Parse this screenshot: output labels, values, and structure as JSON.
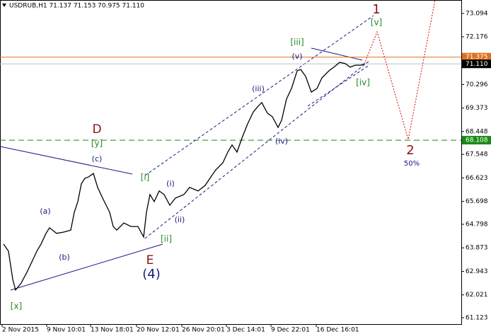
{
  "chart_data": {
    "type": "line",
    "title": "USDRUB,H1  71.137 71.153 70.975 71.110",
    "x": [
      5,
      12,
      18,
      22,
      30,
      38,
      45,
      52,
      58,
      65,
      70,
      80,
      90,
      100,
      105,
      110,
      115,
      120,
      125,
      132,
      138,
      145,
      150,
      155,
      160,
      165,
      175,
      185,
      195,
      203,
      207,
      212,
      218,
      225,
      232,
      240,
      248,
      260,
      268,
      280,
      290,
      298,
      305,
      315,
      322,
      328,
      335,
      342,
      350,
      358,
      365,
      370,
      378,
      385,
      393,
      398,
      405,
      412,
      420,
      425,
      432,
      440,
      448,
      455,
      465,
      472,
      480,
      488,
      495,
      502,
      510,
      515
    ],
    "series": [
      {
        "color": "#000000",
        "values": [
          64.02,
          63.74,
          62.63,
          62.21,
          62.49,
          62.91,
          63.32,
          63.74,
          64.02,
          64.44,
          64.66,
          64.44,
          64.49,
          64.57,
          65.27,
          65.69,
          66.39,
          66.61,
          66.66,
          66.8,
          66.25,
          65.83,
          65.55,
          65.27,
          64.71,
          64.57,
          64.85,
          64.71,
          64.71,
          64.3,
          65.27,
          65.97,
          65.69,
          66.11,
          65.97,
          65.55,
          65.83,
          65.97,
          66.25,
          66.11,
          66.33,
          66.66,
          66.94,
          67.22,
          67.64,
          67.92,
          67.64,
          68.19,
          68.75,
          69.22,
          69.45,
          69.59,
          69.17,
          69.03,
          68.61,
          68.89,
          69.73,
          70.14,
          70.84,
          70.89,
          70.62,
          70.0,
          70.14,
          70.56,
          70.84,
          70.98,
          71.17,
          71.12,
          70.98,
          71.06,
          71.06,
          71.11
        ]
      }
    ],
    "forecast": {
      "color": "#e00000",
      "x": [
        515,
        533,
        577,
        615
      ],
      "values": [
        71.11,
        72.37,
        68.14,
        73.62
      ]
    },
    "xlim": [
      0,
      652
    ],
    "ylim": [
      60.872,
      73.623
    ],
    "xticks": [
      {
        "value": 3,
        "label": "2 Nov 2015"
      },
      {
        "value": 66,
        "label": "9 Nov 10:01"
      },
      {
        "value": 128,
        "label": "13 Nov 18:01"
      },
      {
        "value": 193,
        "label": "20 Nov 12:01"
      },
      {
        "value": 257,
        "label": "26 Nov 20:01"
      },
      {
        "value": 320,
        "label": "3 Dec 14:01"
      },
      {
        "value": 383,
        "label": "9 Dec 22:01"
      },
      {
        "value": 447,
        "label": "16 Dec 16:01"
      }
    ],
    "yticks": [
      73.094,
      72.176,
      70.296,
      69.373,
      68.448,
      67.548,
      66.623,
      65.698,
      64.798,
      63.873,
      62.943,
      62.021,
      61.123
    ],
    "levels": [
      {
        "value": 71.375,
        "color": "#e07020",
        "dashed": false
      },
      {
        "value": 71.11,
        "label": "71.110",
        "color": "#c0c0c0",
        "dashed": false
      },
      {
        "value": 68.108,
        "color": "#1a8a1a",
        "dashed": true
      }
    ],
    "annotations": [
      "1",
      "[v]",
      "[iii]",
      "(v)",
      "(iii)",
      "(iv)",
      "[iv]",
      "2",
      "50%",
      "D",
      "[y]",
      "(c)",
      "[i]",
      "(i)",
      "(ii)",
      "(a)",
      "(b)",
      "[ii]",
      "E",
      "(4)",
      "[x]"
    ]
  }
}
